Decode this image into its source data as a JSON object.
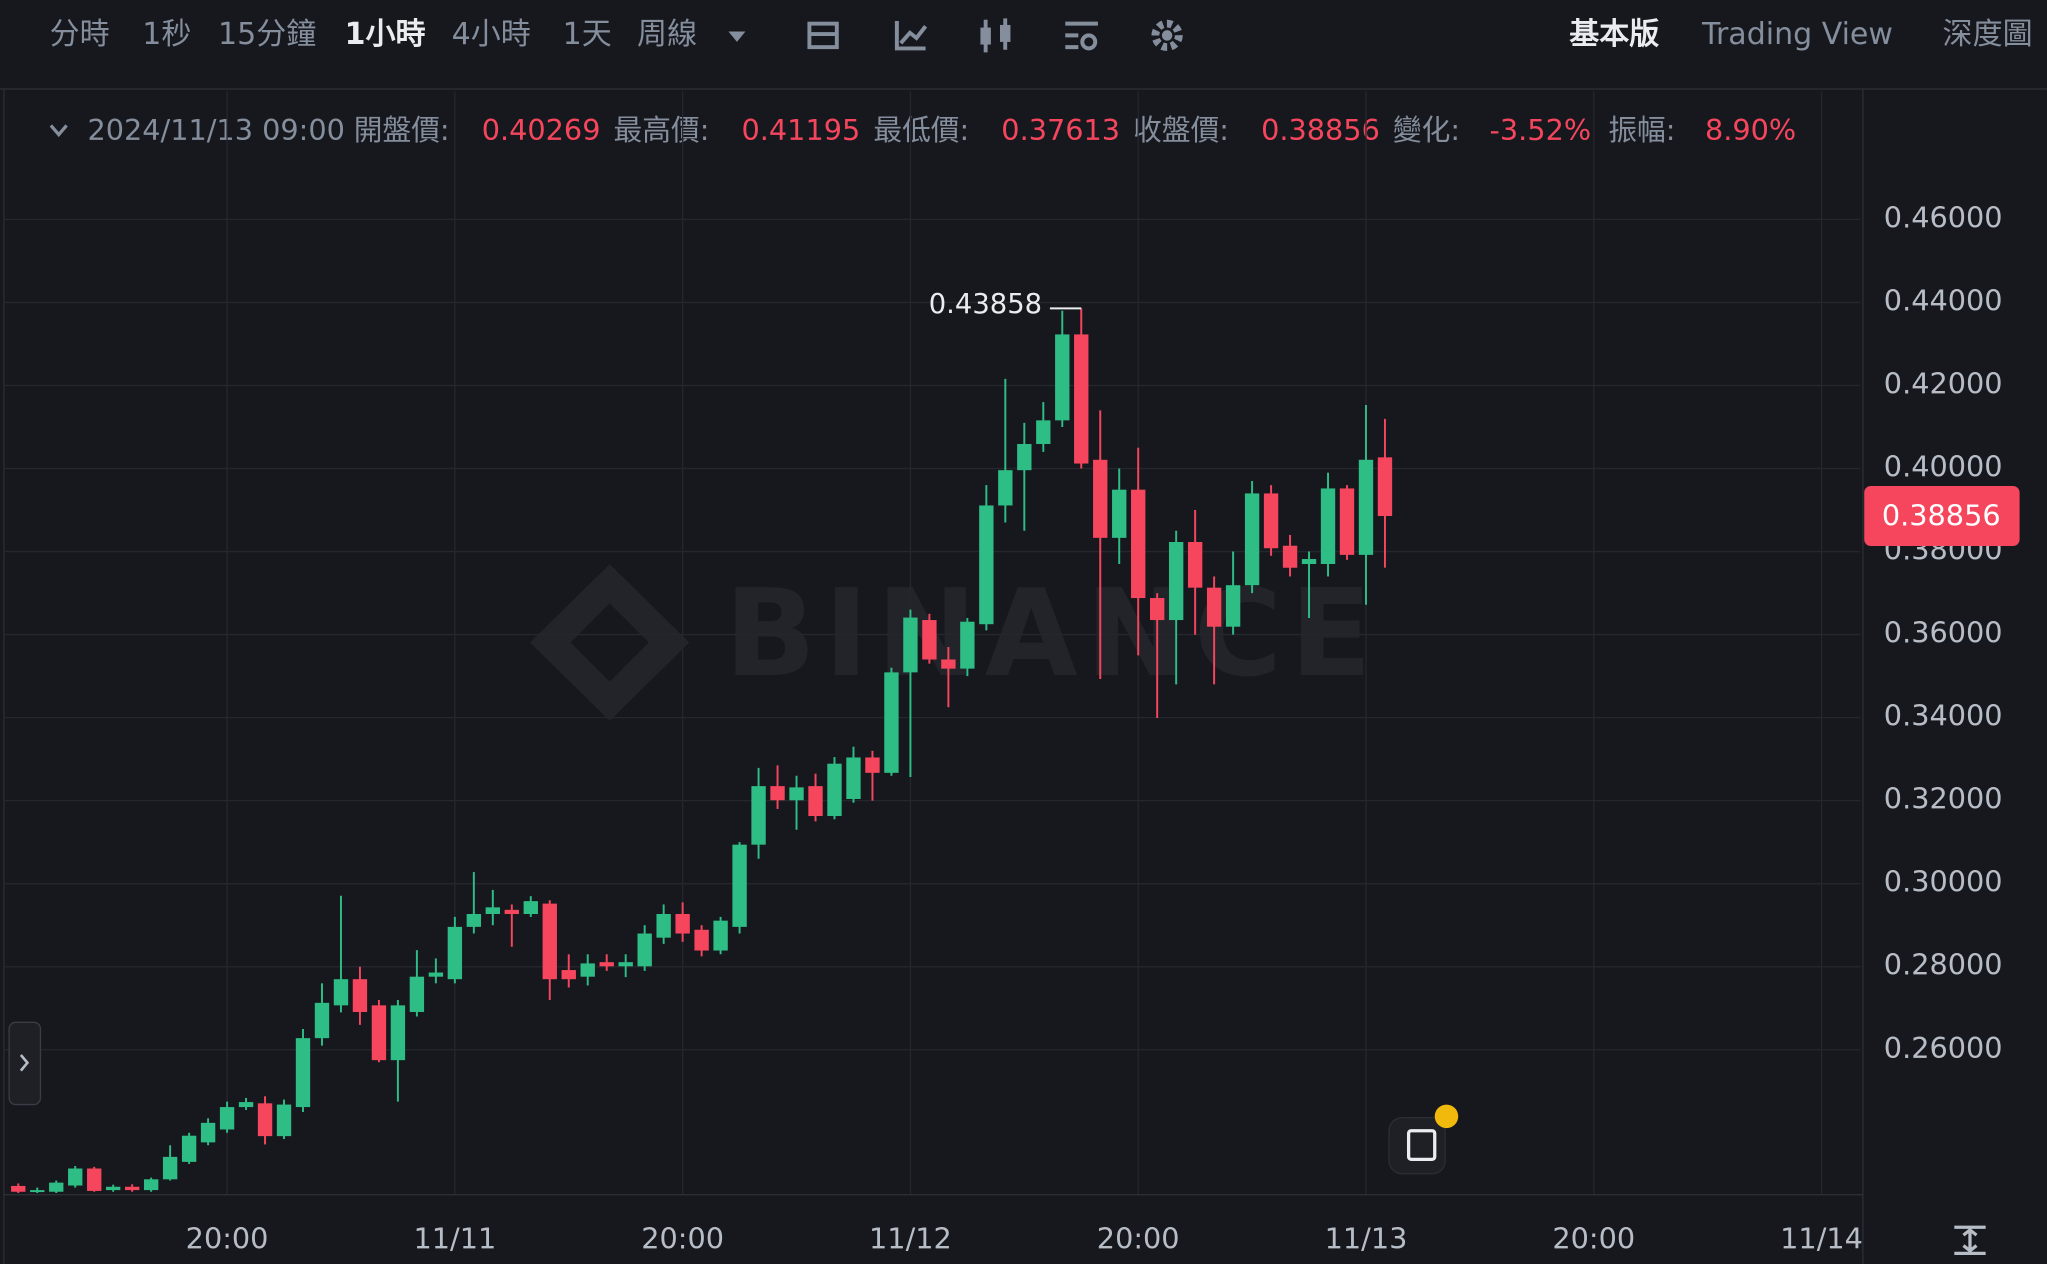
{
  "toolbar": {
    "intervals": [
      "分時",
      "1秒",
      "15分鐘",
      "1小時",
      "4小時",
      "1天",
      "周線"
    ],
    "views": [
      "基本版",
      "Trading View",
      "深度圖"
    ]
  },
  "chart_data": {
    "type": "candlestick",
    "time": "2024/11/13 09:00",
    "info_labels": [
      "開盤價:",
      "最高價:",
      "最低價:",
      "收盤價:",
      "變化:",
      "振幅:"
    ],
    "change": "-3.52%",
    "amplitude": "8.90%",
    "watermark": "BINANCE",
    "up_color": "#2ebd85",
    "down_color": "#f6465d",
    "categories": [
      null,
      null,
      null,
      null,
      null,
      null,
      null,
      null,
      null,
      null,
      null,
      "20:00",
      null,
      null,
      null,
      null,
      null,
      null,
      null,
      null,
      null,
      null,
      null,
      "11/11",
      null,
      null,
      null,
      null,
      null,
      null,
      null,
      null,
      null,
      null,
      null,
      "20:00",
      null,
      null,
      null,
      null,
      null,
      null,
      null,
      null,
      null,
      null,
      null,
      "11/12",
      null,
      null,
      null,
      null,
      null,
      null,
      null,
      null,
      null,
      null,
      null,
      "20:00",
      null,
      null,
      null,
      null,
      null,
      null,
      null,
      null,
      null,
      null,
      null,
      "11/13",
      null,
      null,
      null,
      null,
      null,
      null,
      null,
      null,
      null,
      null,
      null,
      "20:00",
      null,
      null,
      null,
      null,
      null,
      null,
      null,
      null,
      null,
      null,
      null,
      "11/14",
      null,
      null
    ],
    "open": [
      0.2272,
      0.2258,
      0.2258,
      0.2273,
      0.2314,
      0.2262,
      0.227,
      0.2262,
      0.2288,
      0.233,
      0.2377,
      0.2408,
      0.2462,
      0.2471,
      0.2392,
      0.2462,
      0.2628,
      0.2707,
      0.277,
      0.2707,
      0.2575,
      0.2691,
      0.2776,
      0.277,
      0.2896,
      0.2927,
      0.2937,
      0.2927,
      0.2952,
      0.2792,
      0.2776,
      0.2811,
      0.2801,
      0.2801,
      0.287,
      0.2927,
      0.2889,
      0.2839,
      0.2896,
      0.3094,
      0.3235,
      0.3201,
      0.3235,
      0.3163,
      0.3204,
      0.3304,
      0.3267,
      0.3509,
      0.3635,
      0.354,
      0.3518,
      0.3625,
      0.3911,
      0.3996,
      0.4059,
      0.4116,
      0.4323,
      0.4021,
      0.3833,
      0.3949,
      0.3688,
      0.3635,
      0.3823,
      0.3713,
      0.3619,
      0.3719,
      0.394,
      0.3814,
      0.377,
      0.377,
      0.3952,
      0.3792,
      0.40269,
      null,
      null,
      null,
      null,
      null,
      null,
      null,
      null,
      null,
      null,
      null,
      null,
      null,
      null,
      null,
      null,
      null,
      null,
      null,
      null,
      null,
      null,
      null,
      null,
      null
    ],
    "high": [
      0.2278,
      0.2268,
      0.2285,
      0.232,
      0.2318,
      0.2275,
      0.2276,
      0.2292,
      0.237,
      0.24,
      0.2435,
      0.2475,
      0.2484,
      0.2488,
      0.248,
      0.265,
      0.276,
      0.2971,
      0.28,
      0.272,
      0.272,
      0.284,
      0.282,
      0.292,
      0.3028,
      0.2985,
      0.295,
      0.297,
      0.296,
      0.283,
      0.283,
      0.283,
      0.283,
      0.29,
      0.295,
      0.2955,
      0.29,
      0.292,
      0.31,
      0.3279,
      0.3285,
      0.326,
      0.3265,
      0.3305,
      0.333,
      0.332,
      0.352,
      0.366,
      0.365,
      0.357,
      0.364,
      0.396,
      0.4216,
      0.411,
      0.416,
      0.438,
      0.43858,
      0.414,
      0.4,
      0.405,
      0.37,
      0.385,
      0.39,
      0.374,
      0.38,
      0.397,
      0.396,
      0.384,
      0.38,
      0.399,
      0.396,
      0.4153,
      0.41195,
      null,
      null,
      null,
      null,
      null,
      null,
      null,
      null,
      null,
      null,
      null,
      null,
      null,
      null,
      null,
      null,
      null,
      null,
      null,
      null,
      null,
      null,
      null,
      null,
      null
    ],
    "low": [
      0.2255,
      0.2255,
      0.2255,
      0.2268,
      0.2258,
      0.2258,
      0.2258,
      0.2258,
      0.2285,
      0.2325,
      0.237,
      0.24,
      0.2455,
      0.2372,
      0.2385,
      0.245,
      0.261,
      0.269,
      0.266,
      0.257,
      0.2475,
      0.268,
      0.276,
      0.276,
      0.288,
      0.29,
      0.2848,
      0.292,
      0.272,
      0.275,
      0.2755,
      0.279,
      0.2775,
      0.279,
      0.2855,
      0.286,
      0.2825,
      0.283,
      0.288,
      0.306,
      0.318,
      0.313,
      0.315,
      0.3155,
      0.3195,
      0.32,
      0.326,
      0.3257,
      0.353,
      0.3425,
      0.35,
      0.361,
      0.387,
      0.385,
      0.404,
      0.41,
      0.4,
      0.3493,
      0.377,
      0.355,
      0.3399,
      0.348,
      0.36,
      0.348,
      0.36,
      0.37,
      0.379,
      0.374,
      0.364,
      0.374,
      0.378,
      0.3672,
      0.37613,
      null,
      null,
      null,
      null,
      null,
      null,
      null,
      null,
      null,
      null,
      null,
      null,
      null,
      null,
      null,
      null,
      null,
      null,
      null,
      null,
      null,
      null,
      null,
      null,
      null
    ],
    "close": [
      0.2258,
      0.2262,
      0.228,
      0.2314,
      0.226,
      0.227,
      0.2262,
      0.2288,
      0.2342,
      0.2393,
      0.2424,
      0.2462,
      0.2474,
      0.2392,
      0.2468,
      0.2628,
      0.2713,
      0.277,
      0.2691,
      0.2575,
      0.2707,
      0.2776,
      0.2786,
      0.2896,
      0.2927,
      0.2943,
      0.2927,
      0.2958,
      0.277,
      0.277,
      0.2808,
      0.2801,
      0.2811,
      0.288,
      0.2927,
      0.288,
      0.2839,
      0.2911,
      0.3094,
      0.3235,
      0.3201,
      0.3232,
      0.3163,
      0.3289,
      0.3304,
      0.3267,
      0.3509,
      0.3641,
      0.354,
      0.3518,
      0.3631,
      0.3911,
      0.3996,
      0.4059,
      0.4116,
      0.4323,
      0.4012,
      0.3833,
      0.3949,
      0.3688,
      0.3635,
      0.3823,
      0.3713,
      0.3619,
      0.3719,
      0.394,
      0.3808,
      0.3761,
      0.3782,
      0.3952,
      0.3792,
      0.4021,
      0.38856,
      null,
      null,
      null,
      null,
      null,
      null,
      null,
      null,
      null,
      null,
      null,
      null,
      null,
      null,
      null,
      null,
      null,
      null,
      null,
      null,
      null,
      null,
      null,
      null,
      null
    ],
    "ylim": [
      0.2251,
      0.4908
    ],
    "yticks": [
      {
        "value": 0.26,
        "label": "0.26000"
      },
      {
        "value": 0.28,
        "label": "0.28000"
      },
      {
        "value": 0.3,
        "label": "0.30000"
      },
      {
        "value": 0.32,
        "label": "0.32000"
      },
      {
        "value": 0.34,
        "label": "0.34000"
      },
      {
        "value": 0.36,
        "label": "0.36000"
      },
      {
        "value": 0.38,
        "label": "0.38000"
      },
      {
        "value": 0.4,
        "label": "0.40000"
      },
      {
        "value": 0.42,
        "label": "0.42000"
      },
      {
        "value": 0.44,
        "label": "0.44000"
      },
      {
        "value": 0.46,
        "label": "0.46000"
      }
    ],
    "grid": true
  }
}
